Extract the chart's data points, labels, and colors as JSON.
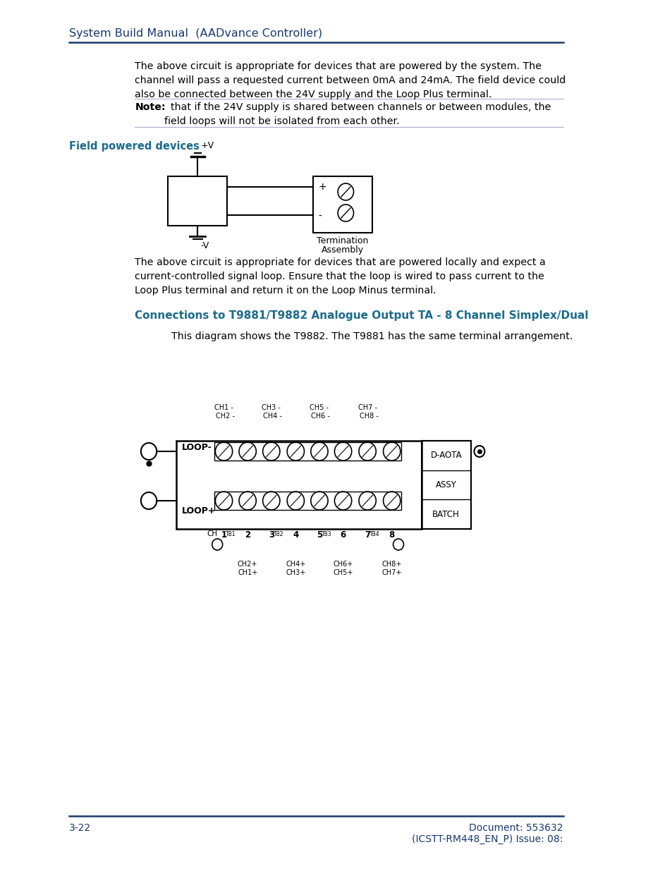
{
  "page_bg": "#ffffff",
  "header_color": "#1a3a6b",
  "header_text": "System Build Manual  (AADvance Controller)",
  "separator_color": "#1a3a6b",
  "body_text_color": "#000000",
  "para1": "The above circuit is appropriate for devices that are powered by the system. The\nchannel will pass a requested current between 0mA and 24mA. The field device could\nalso be connected between the 24V supply and the Loop Plus terminal.",
  "note_label": "Note:",
  "note_text": "  that if the 24V supply is shared between channels or between modules, the\nfield loops will not be isolated from each other.",
  "section_title": "Field powered devices",
  "section_title_color": "#1a6b8a",
  "para2": "The above circuit is appropriate for devices that are powered locally and expect a\ncurrent-controlled signal loop. Ensure that the loop is wired to pass current to the\nLoop Plus terminal and return it on the Loop Minus terminal.",
  "section2_title": "Connections to T9881/T9882 Analogue Output TA - 8 Channel Simplex/Dual",
  "section2_color": "#1a6b8a",
  "para3": "This diagram shows the T9882. The T9881 has the same terminal arrangement.",
  "footer_left": "3-22",
  "footer_right": "Document: 553632\n(ICSTT-RM448_EN_P) Issue: 08:",
  "footer_color": "#1a3a6b"
}
